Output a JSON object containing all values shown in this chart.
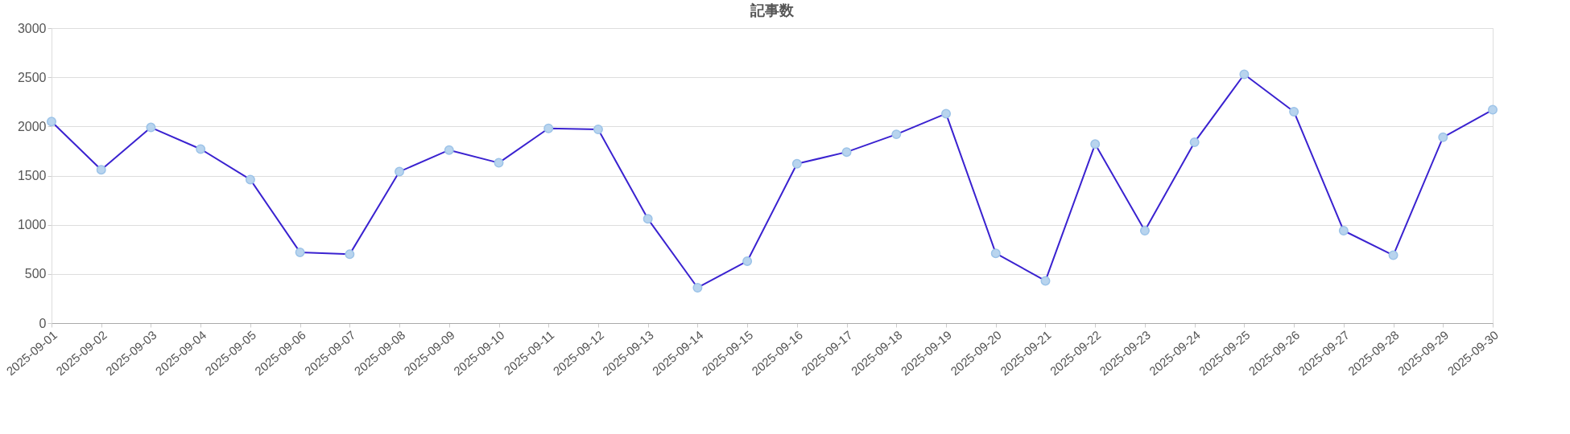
{
  "chart_data": {
    "type": "line",
    "title": "記事数",
    "categories": [
      "2025-09-01",
      "2025-09-02",
      "2025-09-03",
      "2025-09-04",
      "2025-09-05",
      "2025-09-06",
      "2025-09-07",
      "2025-09-08",
      "2025-09-09",
      "2025-09-10",
      "2025-09-11",
      "2025-09-12",
      "2025-09-13",
      "2025-09-14",
      "2025-09-15",
      "2025-09-16",
      "2025-09-17",
      "2025-09-18",
      "2025-09-19",
      "2025-09-20",
      "2025-09-21",
      "2025-09-22",
      "2025-09-23",
      "2025-09-24",
      "2025-09-25",
      "2025-09-26",
      "2025-09-27",
      "2025-09-28",
      "2025-09-29",
      "2025-09-30"
    ],
    "series": [
      {
        "color": "#3a22d0",
        "values": [
          2050,
          1560,
          1990,
          1770,
          1460,
          720,
          700,
          1540,
          1760,
          1630,
          1980,
          1970,
          1060,
          360,
          630,
          1620,
          1740,
          1920,
          2130,
          710,
          430,
          1820,
          940,
          1840,
          2530,
          2150,
          940,
          690,
          1890,
          2170
        ]
      }
    ],
    "ylim": [
      0,
      3000
    ],
    "yticks": [
      0,
      500,
      1000,
      1500,
      2000,
      2500,
      3000
    ],
    "grid": "y",
    "marker": "circle",
    "line_style": "solid"
  }
}
